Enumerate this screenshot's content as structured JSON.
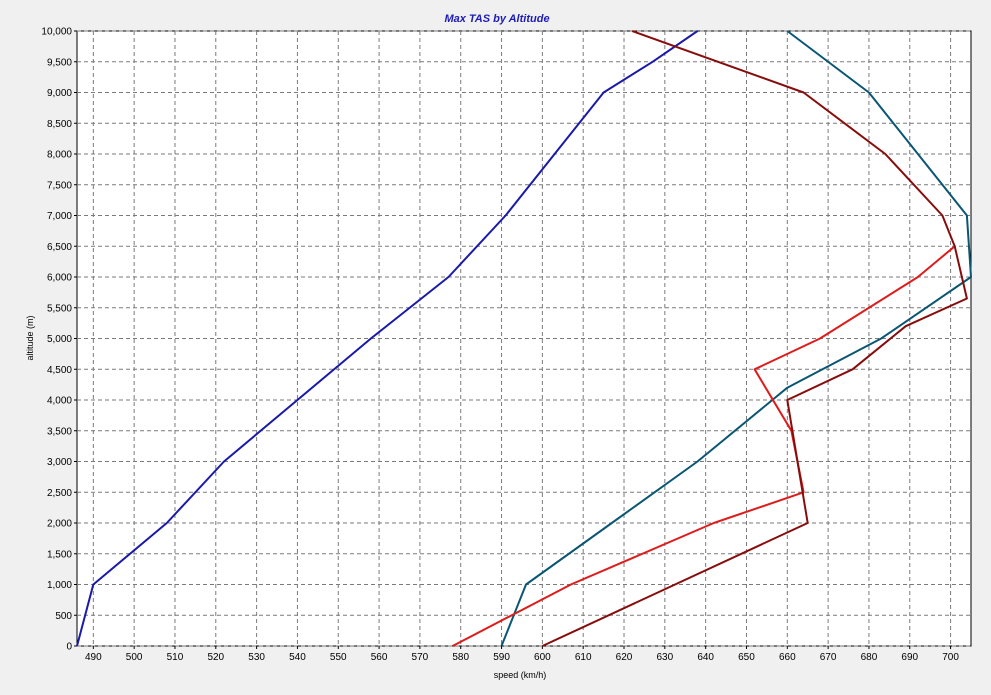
{
  "chart_data": {
    "type": "line",
    "title": "Max TAS by Altitude",
    "xlabel": "speed (km/h)",
    "ylabel": "altitude (m)",
    "xlim": [
      486,
      705
    ],
    "ylim": [
      0,
      10000
    ],
    "x_ticks": [
      490,
      500,
      510,
      520,
      530,
      540,
      550,
      560,
      570,
      580,
      590,
      600,
      610,
      620,
      630,
      640,
      650,
      660,
      670,
      680,
      690,
      700
    ],
    "y_ticks": [
      0,
      500,
      1000,
      1500,
      2000,
      2500,
      3000,
      3500,
      4000,
      4500,
      5000,
      5500,
      6000,
      6500,
      7000,
      7500,
      8000,
      8500,
      9000,
      9500,
      10000
    ],
    "y_tick_labels": [
      "0",
      "500",
      "1,000",
      "1,500",
      "2,000",
      "2,500",
      "3,000",
      "3,500",
      "4,000",
      "4,500",
      "5,000",
      "5,500",
      "6,000",
      "6,500",
      "7,000",
      "7,500",
      "8,000",
      "8,500",
      "9,000",
      "9,500",
      "10,000"
    ],
    "grid": true,
    "legend": "none",
    "series": [
      {
        "color": "#1a1aa8",
        "points": [
          [
            486,
            0
          ],
          [
            490,
            1000
          ],
          [
            508,
            2000
          ],
          [
            522,
            3000
          ],
          [
            540,
            4000
          ],
          [
            558,
            5000
          ],
          [
            577,
            6000
          ],
          [
            591,
            7000
          ],
          [
            603,
            8000
          ],
          [
            615,
            9000
          ],
          [
            627,
            9500
          ],
          [
            638,
            10000
          ]
        ]
      },
      {
        "color": "#0b5673",
        "points": [
          [
            590,
            0
          ],
          [
            596,
            1000
          ],
          [
            617,
            2000
          ],
          [
            638,
            3000
          ],
          [
            660,
            4200
          ],
          [
            683,
            5000
          ],
          [
            705,
            6000
          ],
          [
            704,
            7000
          ],
          [
            692,
            8000
          ],
          [
            680,
            9000
          ],
          [
            660,
            10000
          ]
        ]
      },
      {
        "color": "#dd1c1c",
        "points": [
          [
            578,
            0
          ],
          [
            607,
            1000
          ],
          [
            642,
            2000
          ],
          [
            664,
            2500
          ],
          [
            661,
            3500
          ],
          [
            652,
            4500
          ],
          [
            668,
            5000
          ],
          [
            692,
            6000
          ],
          [
            701,
            6500
          ]
        ]
      },
      {
        "color": "#870d0d",
        "points": [
          [
            600,
            0
          ],
          [
            665,
            2000
          ],
          [
            660,
            4000
          ],
          [
            676,
            4500
          ],
          [
            689,
            5200
          ],
          [
            704,
            5650
          ],
          [
            701,
            6500
          ],
          [
            698,
            7000
          ],
          [
            684,
            8000
          ],
          [
            664,
            9000
          ],
          [
            622,
            10000
          ]
        ]
      }
    ]
  }
}
